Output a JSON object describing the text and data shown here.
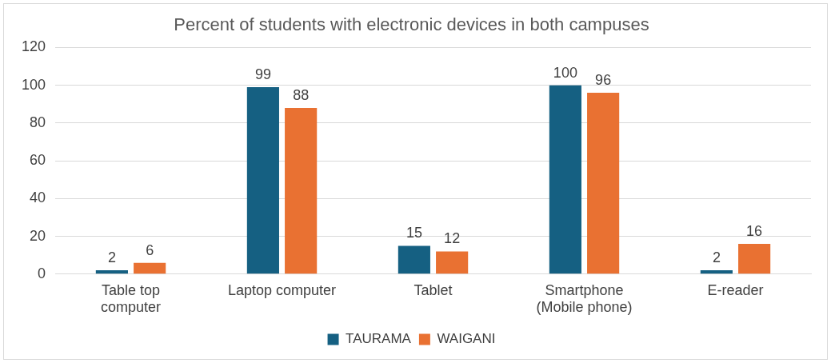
{
  "chart_data": {
    "type": "bar",
    "title": "Percent of students with electronic devices in both campuses",
    "categories": [
      "Table top computer",
      "Laptop computer",
      "Tablet",
      "Smartphone (Mobile phone)",
      "E-reader"
    ],
    "series": [
      {
        "name": "TAURAMA",
        "color": "#156082",
        "values": [
          2,
          99,
          15,
          100,
          2
        ]
      },
      {
        "name": "WAIGANI",
        "color": "#e97132",
        "values": [
          6,
          88,
          12,
          96,
          16
        ]
      }
    ],
    "ylim": [
      0,
      120
    ],
    "yticks": [
      0,
      20,
      40,
      60,
      80,
      100,
      120
    ],
    "grid": "y",
    "legend": "bottom",
    "data_labels": true
  }
}
